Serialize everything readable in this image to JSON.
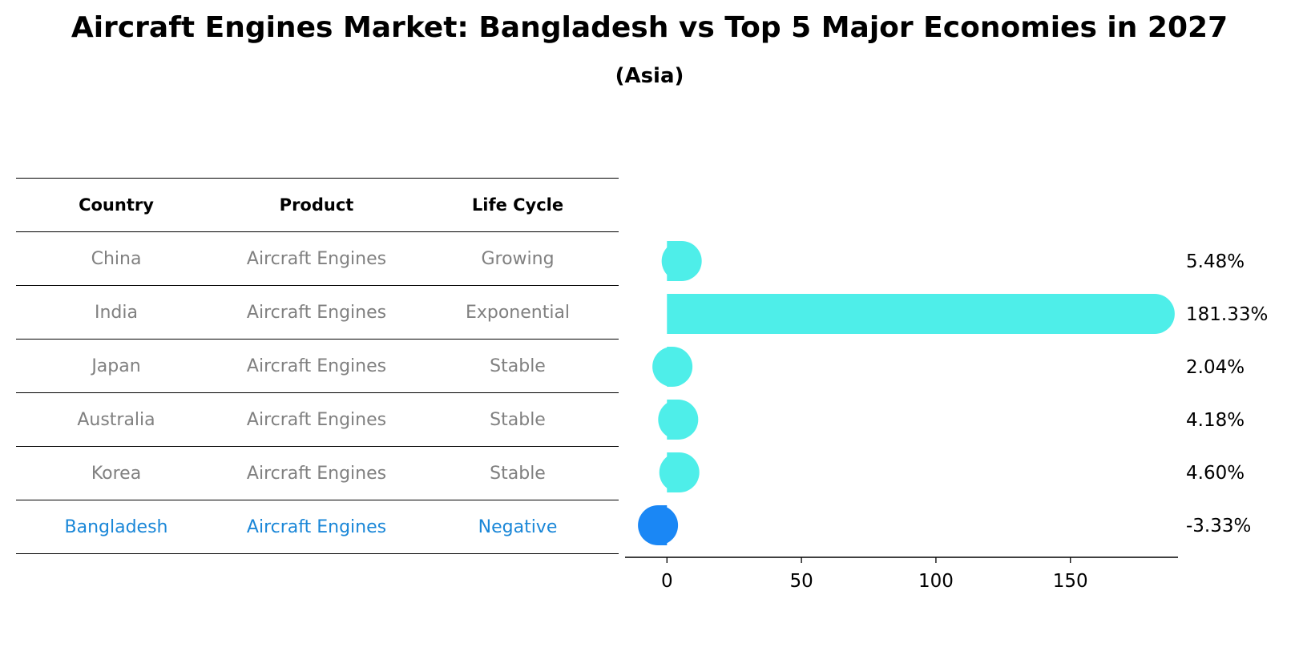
{
  "title": "Aircraft Engines Market: Bangladesh vs Top 5 Major Economies in 2027",
  "subtitle": "(Asia)",
  "colors": {
    "bar": "#4eeee9",
    "highlight_bar": "#1a87f5",
    "highlight_text": "#1a87d8",
    "row_text": "#808080"
  },
  "table": {
    "headers": [
      "Country",
      "Product",
      "Life Cycle"
    ],
    "rows": [
      {
        "country": "China",
        "product": "Aircraft Engines",
        "life_cycle": "Growing"
      },
      {
        "country": "India",
        "product": "Aircraft Engines",
        "life_cycle": "Exponential"
      },
      {
        "country": "Japan",
        "product": "Aircraft Engines",
        "life_cycle": "Stable"
      },
      {
        "country": "Australia",
        "product": "Aircraft Engines",
        "life_cycle": "Stable"
      },
      {
        "country": "Korea",
        "product": "Aircraft Engines",
        "life_cycle": "Stable"
      },
      {
        "country": "Bangladesh",
        "product": "Aircraft Engines",
        "life_cycle": "Negative"
      }
    ]
  },
  "chart_data": {
    "type": "bar",
    "orientation": "horizontal",
    "categories": [
      "China",
      "India",
      "Japan",
      "Australia",
      "Korea",
      "Bangladesh"
    ],
    "values": [
      5.48,
      181.33,
      2.04,
      4.18,
      4.6,
      -3.33
    ],
    "value_labels": [
      "5.48%",
      "181.33%",
      "2.04%",
      "4.18%",
      "4.60%",
      "-3.33%"
    ],
    "highlight": "Bangladesh",
    "xlim": [
      -12,
      190
    ],
    "xticks": [
      0,
      50,
      100,
      150
    ],
    "xlabel": "",
    "ylabel": ""
  }
}
